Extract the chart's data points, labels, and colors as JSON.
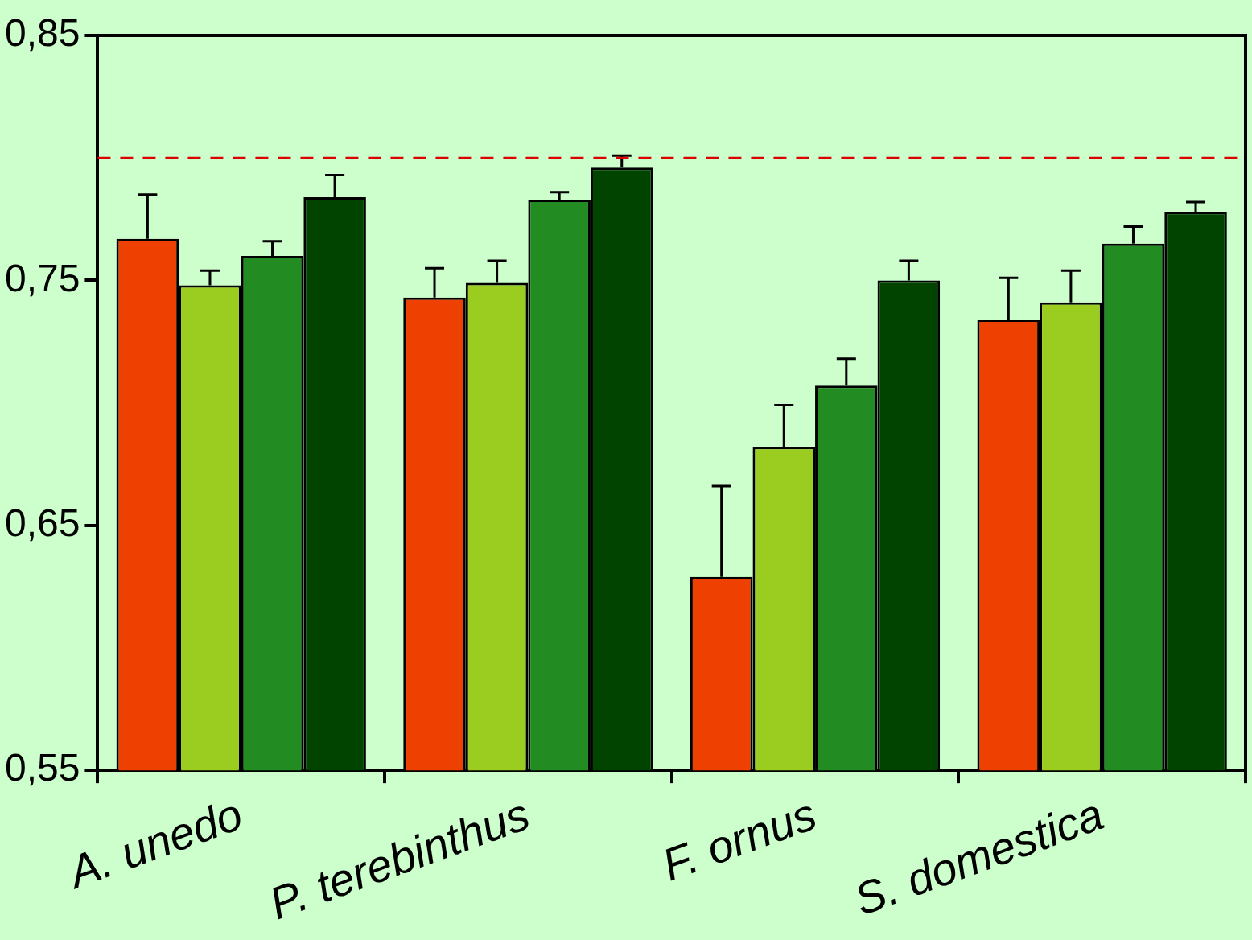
{
  "chart_data": {
    "type": "bar",
    "categories": [
      "A. unedo",
      "P. terebinthus",
      "F. ornus",
      "S. domestica"
    ],
    "series": [
      {
        "color": "#ee4000",
        "values": [
          0.767,
          0.743,
          0.629,
          0.734
        ],
        "errors": [
          0.018,
          0.012,
          0.037,
          0.017
        ]
      },
      {
        "color": "#9acd20",
        "values": [
          0.748,
          0.749,
          0.682,
          0.741
        ],
        "errors": [
          0.006,
          0.009,
          0.017,
          0.013
        ]
      },
      {
        "color": "#228b22",
        "values": [
          0.76,
          0.783,
          0.707,
          0.765
        ],
        "errors": [
          0.006,
          0.003,
          0.011,
          0.007
        ]
      },
      {
        "color": "#004400",
        "values": [
          0.784,
          0.796,
          0.75,
          0.778
        ],
        "errors": [
          0.009,
          0.005,
          0.008,
          0.004
        ]
      }
    ],
    "ylim": [
      0.55,
      0.85
    ],
    "yticks": [
      {
        "value": 0.55,
        "label": "0,55"
      },
      {
        "value": 0.65,
        "label": "0,65"
      },
      {
        "value": 0.75,
        "label": "0,75"
      },
      {
        "value": 0.85,
        "label": "0,85"
      }
    ],
    "ref_lines": [
      {
        "axis": "y",
        "value": 0.8,
        "color": "#dd0000",
        "line_style": "dashed"
      }
    ],
    "grid": false,
    "legend": false
  }
}
